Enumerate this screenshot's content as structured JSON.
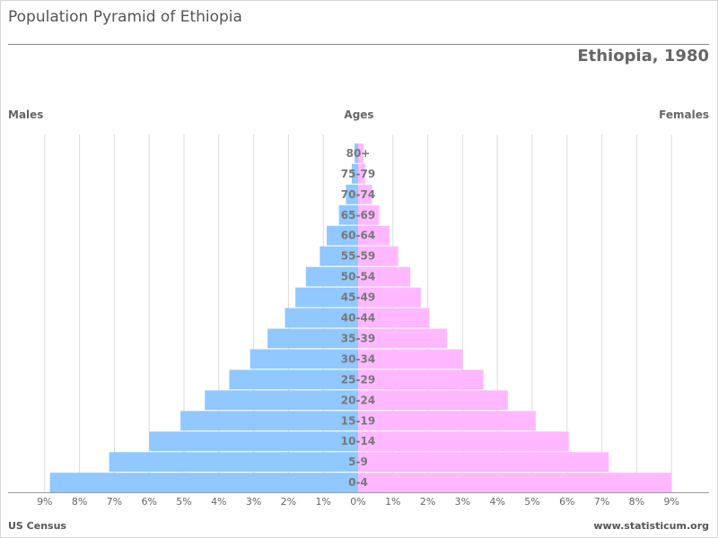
{
  "header": {
    "page_title": "Population Pyramid of Ethiopia",
    "subtitle": "Ethiopia, 1980",
    "males_label": "Males",
    "ages_label": "Ages",
    "females_label": "Females"
  },
  "footer": {
    "source": "US Census",
    "site": "www.statisticum.org"
  },
  "colors": {
    "males": "#90c8ff",
    "females": "#ffb8ff",
    "grid": "#dddddd",
    "axis": "#999999"
  },
  "chart_data": {
    "type": "bar",
    "orientation": "horizontal-pyramid",
    "categories": [
      "0-4",
      "5-9",
      "10-14",
      "15-19",
      "20-24",
      "25-29",
      "30-34",
      "35-39",
      "40-44",
      "45-49",
      "50-54",
      "55-59",
      "60-64",
      "65-69",
      "70-74",
      "75-79",
      "80+"
    ],
    "series": [
      {
        "name": "Males",
        "values": [
          8.85,
          7.15,
          6.0,
          5.1,
          4.4,
          3.7,
          3.1,
          2.6,
          2.1,
          1.8,
          1.5,
          1.1,
          0.9,
          0.55,
          0.35,
          0.18,
          0.1
        ]
      },
      {
        "name": "Females",
        "values": [
          9.0,
          7.2,
          6.05,
          5.1,
          4.3,
          3.6,
          3.0,
          2.55,
          2.05,
          1.8,
          1.5,
          1.15,
          0.9,
          0.6,
          0.4,
          0.2,
          0.15
        ]
      }
    ],
    "x_ticks": [
      "9%",
      "8%",
      "7%",
      "6%",
      "5%",
      "4%",
      "3%",
      "2%",
      "1%",
      "0%",
      "1%",
      "2%",
      "3%",
      "4%",
      "5%",
      "6%",
      "7%",
      "8%",
      "9%"
    ],
    "xlim": [
      -9,
      9
    ],
    "grid": true
  }
}
